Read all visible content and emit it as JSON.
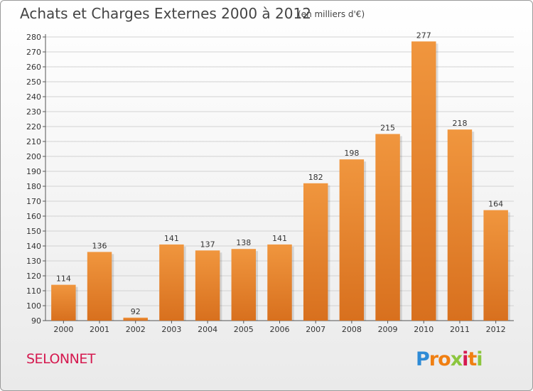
{
  "chart_data": {
    "type": "bar",
    "title": "Achats et Charges Externes 2000 à 2012",
    "subtitle": "(en milliers d'€)",
    "categories": [
      "2000",
      "2001",
      "2002",
      "2003",
      "2004",
      "2005",
      "2006",
      "2007",
      "2008",
      "2009",
      "2010",
      "2011",
      "2012"
    ],
    "values": [
      114,
      136,
      92,
      141,
      137,
      138,
      141,
      182,
      198,
      215,
      277,
      218,
      164
    ],
    "ylim": [
      90,
      280
    ],
    "ytick_step": 10,
    "grid": true,
    "bar_color": "#f0963e",
    "bar_color_dark": "#d8701e"
  },
  "footer": {
    "town": "SELONNET",
    "logo_letters": [
      "P",
      "r",
      "o",
      "x",
      "i",
      "t",
      "i"
    ],
    "logo_colors": [
      "#2e8bd6",
      "#f07f12",
      "#f07f12",
      "#8cc63e",
      "#d5194f",
      "#f07f12",
      "#8cc63e"
    ]
  }
}
